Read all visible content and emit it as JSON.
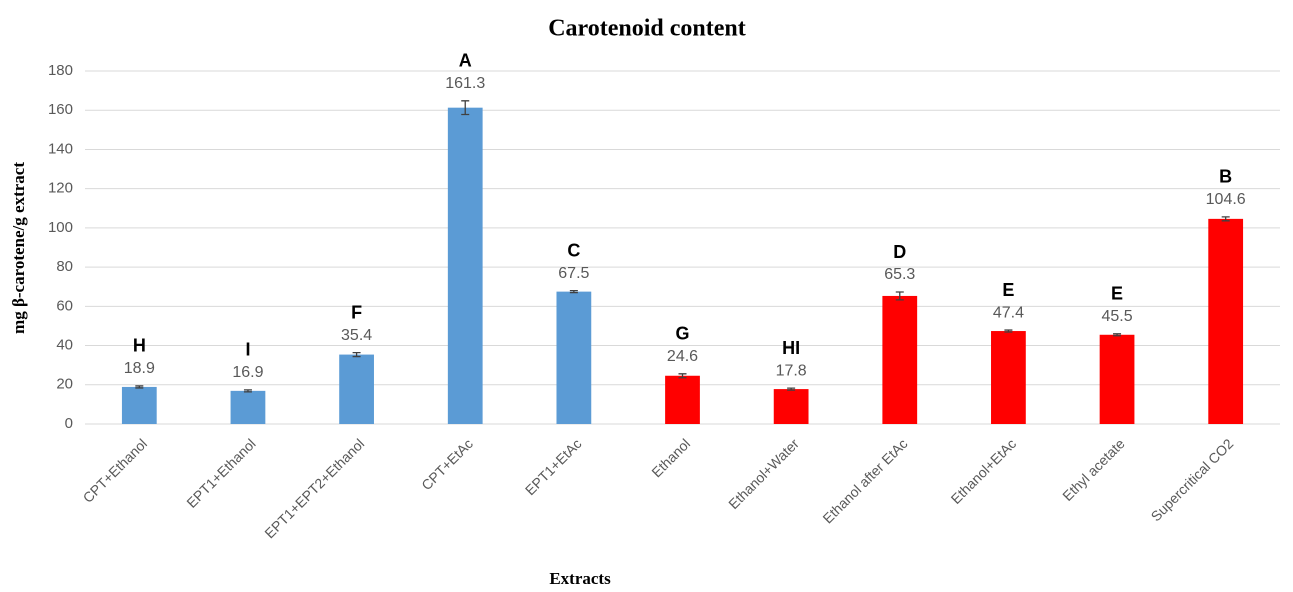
{
  "chart_data": {
    "type": "bar",
    "title": "Carotenoid content",
    "x_label": "Extracts",
    "y_label": "mg β-carotene/g extract",
    "categories": [
      "CPT+Ethanol",
      "EPT1+Ethanol",
      "EPT1+EPT2+Ethanol",
      "CPT+EtAc",
      "EPT1+EtAc",
      "Ethanol",
      "Ethanol+Water",
      "Ethanol after EtAc",
      "Ethanol+EtAc",
      "Ethyl acetate",
      "Supercritical CO2"
    ],
    "values": [
      18.9,
      16.9,
      35.4,
      161.3,
      67.5,
      24.6,
      17.8,
      65.3,
      47.4,
      45.5,
      104.6
    ],
    "errors": [
      0.5,
      0.5,
      1,
      3.5,
      0.5,
      1,
      0.5,
      2,
      0.5,
      0.5,
      1
    ],
    "annotations": [
      "H",
      "I",
      "F",
      "A",
      "C",
      "G",
      "HI",
      "D",
      "E",
      "E",
      "B"
    ],
    "colors": [
      "#5b9bd5",
      "#5b9bd5",
      "#5b9bd5",
      "#5b9bd5",
      "#5b9bd5",
      "#ff0000",
      "#ff0000",
      "#ff0000",
      "#ff0000",
      "#ff0000",
      "#ff0000"
    ],
    "ylim": [
      0,
      180
    ],
    "yticks": [
      0,
      20,
      40,
      60,
      80,
      100,
      120,
      140,
      160,
      180
    ],
    "grid": true
  }
}
